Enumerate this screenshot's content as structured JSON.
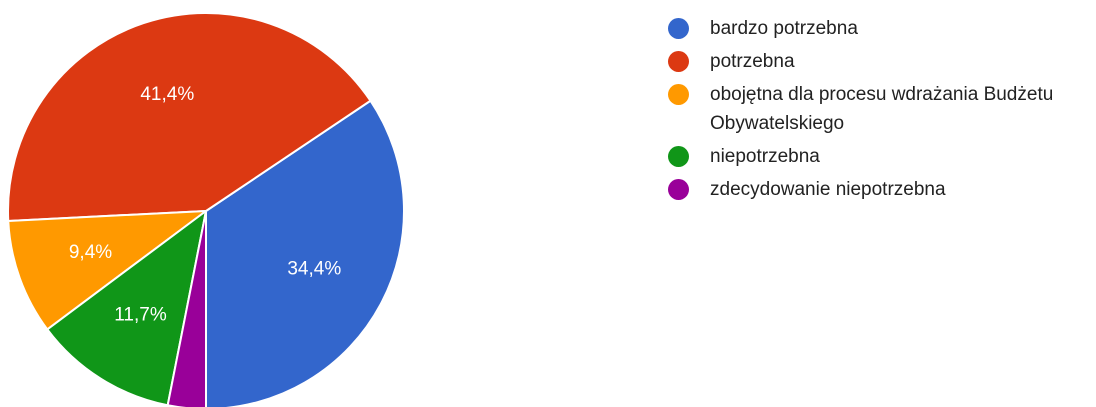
{
  "chart_data": {
    "type": "pie",
    "title": "",
    "slices": [
      {
        "label": "bardzo potrzebna",
        "value": 34.4,
        "display": "34,4%",
        "color": "#3366cc"
      },
      {
        "label": "potrzebna",
        "value": 41.4,
        "display": "41,4%",
        "color": "#dc3912"
      },
      {
        "label": "obojętna dla procesu wdrażania Budżetu Obywatelskiego",
        "value": 9.4,
        "display": "9,4%",
        "color": "#ff9900"
      },
      {
        "label": "niepotrzebna",
        "value": 11.7,
        "display": "11,7%",
        "color": "#109618"
      },
      {
        "label": "zdecydowanie niepotrzebna",
        "value": 3.1,
        "display": "",
        "color": "#990099"
      }
    ],
    "legend_position": "right"
  }
}
